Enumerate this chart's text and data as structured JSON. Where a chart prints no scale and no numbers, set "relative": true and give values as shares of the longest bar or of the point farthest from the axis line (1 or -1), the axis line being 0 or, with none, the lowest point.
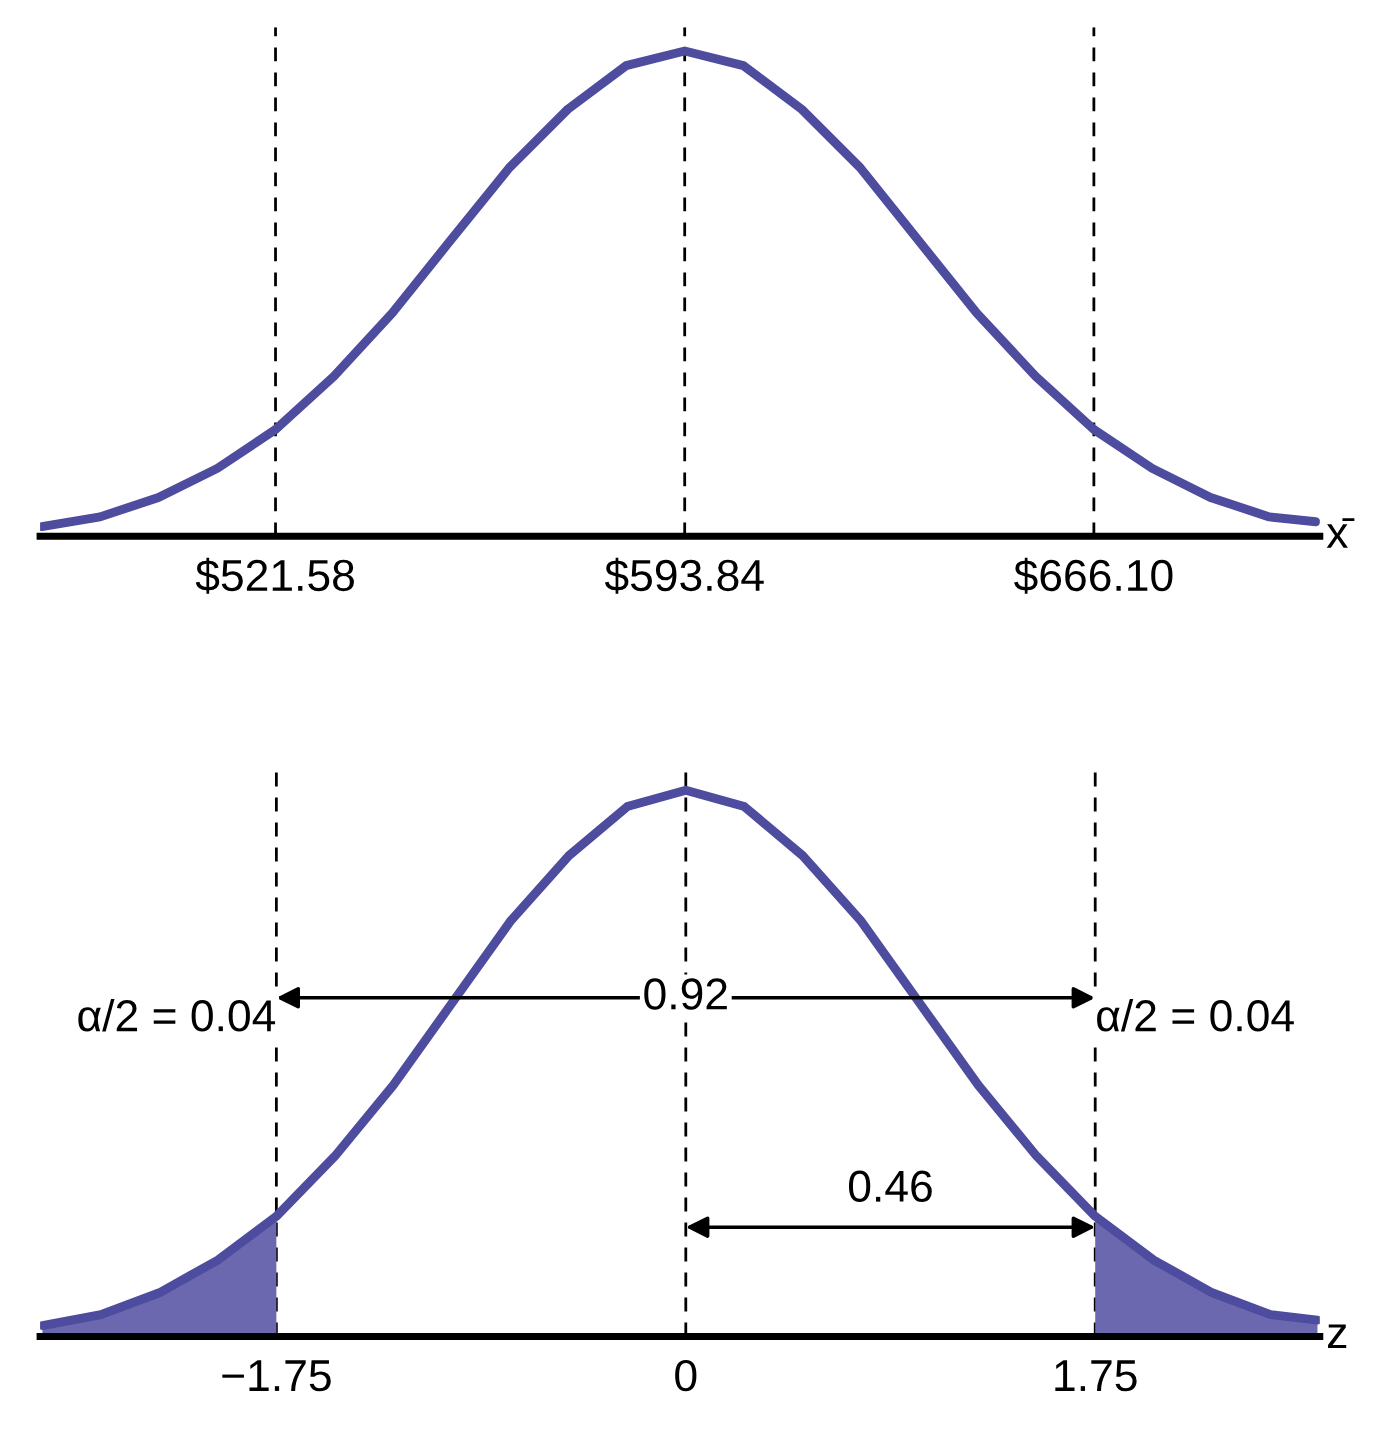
{
  "chart_data": [
    {
      "type": "line",
      "xlabel": "x̄",
      "relative": true,
      "tick_labels": "x",
      "grid": false,
      "legend": false,
      "xlim": [
        480,
        706
      ],
      "xticks": [
        {
          "value": 521.58,
          "label": "$521.58"
        },
        {
          "value": 593.84,
          "label": "$593.84"
        },
        {
          "value": 666.1,
          "label": "$666.10"
        }
      ],
      "series": [
        {
          "color": "#4e4c9e",
          "x": [
            480.3,
            490.6,
            500.9,
            511.3,
            521.58,
            531.9,
            542.2,
            552.5,
            562.9,
            573.2,
            583.5,
            593.84,
            604.2,
            614.5,
            624.8,
            635.1,
            645.4,
            655.8,
            666.1,
            676.4,
            686.7,
            697.1,
            705.3
          ],
          "values": [
            0.02,
            0.04,
            0.08,
            0.14,
            0.22,
            0.33,
            0.46,
            0.61,
            0.76,
            0.88,
            0.97,
            1,
            0.97,
            0.88,
            0.76,
            0.61,
            0.46,
            0.33,
            0.22,
            0.14,
            0.08,
            0.04,
            0.03
          ]
        }
      ],
      "ref_lines": [
        {
          "axis": "x",
          "value": 521.58,
          "color": "#000000",
          "line_style": "dashed"
        },
        {
          "axis": "x",
          "value": 593.84,
          "color": "#000000",
          "line_style": "dashed"
        },
        {
          "axis": "x",
          "value": 666.1,
          "color": "#000000",
          "line_style": "dashed"
        }
      ]
    },
    {
      "type": "line",
      "xlabel": "z",
      "relative": true,
      "tick_labels": "x",
      "grid": false,
      "legend": false,
      "xlim": [
        -2.76,
        2.71
      ],
      "xticks": [
        {
          "value": -1.75,
          "label": "−1.75"
        },
        0,
        1.75
      ],
      "series": [
        {
          "color": "#4e4c9e",
          "x": [
            -2.75,
            -2.5,
            -2.25,
            -2,
            -1.75,
            -1.5,
            -1.25,
            -1,
            -0.75,
            -0.5,
            -0.25,
            0,
            0.25,
            0.5,
            0.75,
            1,
            1.25,
            1.5,
            1.75,
            2,
            2.25,
            2.5,
            2.7
          ],
          "values": [
            0.02,
            0.04,
            0.08,
            0.14,
            0.22,
            0.33,
            0.46,
            0.61,
            0.76,
            0.88,
            0.97,
            1,
            0.97,
            0.88,
            0.76,
            0.61,
            0.46,
            0.33,
            0.22,
            0.14,
            0.08,
            0.04,
            0.03
          ]
        },
        {
          "type": "area",
          "color": "#6b68b0",
          "x": [
            -2.75,
            -2.5,
            -2.25,
            -2,
            -1.75
          ],
          "values": [
            0.02,
            0.04,
            0.08,
            0.14,
            0.22
          ]
        },
        {
          "type": "area",
          "color": "#6b68b0",
          "x": [
            1.75,
            2,
            2.25,
            2.5,
            2.7
          ],
          "values": [
            0.22,
            0.14,
            0.08,
            0.04,
            0.03
          ]
        }
      ],
      "ref_lines": [
        {
          "axis": "x",
          "value": -1.75,
          "color": "#000000",
          "line_style": "dashed"
        },
        {
          "axis": "x",
          "value": 0,
          "color": "#000000",
          "line_style": "dashed"
        },
        {
          "axis": "x",
          "value": 1.75,
          "color": "#000000",
          "line_style": "dashed"
        }
      ],
      "annotations": [
        {
          "text": "0.92",
          "x": 0,
          "y": 0.62
        },
        "0.46",
        "α/2 = 0.04",
        "α/2 = 0.04"
      ]
    }
  ]
}
